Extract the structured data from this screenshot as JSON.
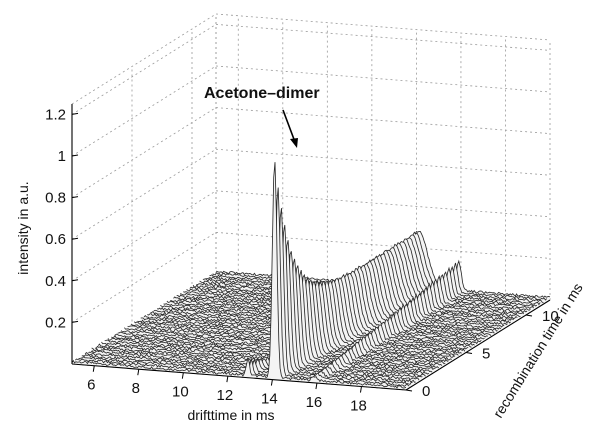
{
  "chart_data": {
    "type": "surface",
    "title": "",
    "xlabel": "drifttime in ms",
    "ylabel": "recombination time in ms",
    "zlabel": "intensity in a.u.",
    "x_ticks": [
      "6",
      "8",
      "10",
      "12",
      "14",
      "16",
      "18"
    ],
    "y_ticks": [
      "0",
      "5",
      "10"
    ],
    "z_ticks": [
      "0.2",
      "0.4",
      "0.6",
      "0.8",
      "1",
      "1.2"
    ],
    "xlim": [
      5,
      20
    ],
    "ylim": [
      0,
      12
    ],
    "zlim": [
      0,
      1.25
    ],
    "grid": true,
    "annotations": [
      {
        "text": "Acetone–dimer",
        "x": 14.1,
        "y": 0,
        "z": 1.05
      }
    ],
    "series": [
      {
        "peak_drift_ms": 14.1,
        "recombination_0ms": 1.05,
        "recombination_12ms": 0.27
      },
      {
        "peak_drift_ms": 15.9,
        "recombination_0ms": 0.02,
        "recombination_12ms": 0.14
      },
      {
        "peak_drift_ms": 12.9,
        "recombination_0ms": 0.08,
        "recombination_12ms": 0.0
      }
    ]
  }
}
